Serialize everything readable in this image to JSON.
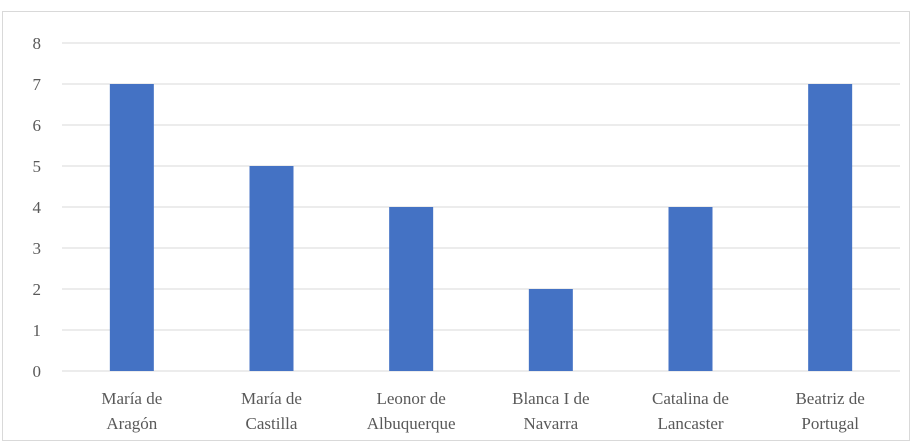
{
  "chart_data": {
    "type": "bar",
    "title": "",
    "xlabel": "",
    "ylabel": "",
    "categories": [
      [
        "María de",
        "Aragón"
      ],
      [
        "María de",
        "Castilla"
      ],
      [
        "Leonor de",
        "Albuquerque"
      ],
      [
        "Blanca I de",
        "Navarra"
      ],
      [
        "Catalina de",
        "Lancaster"
      ],
      [
        "Beatriz de",
        "Portugal"
      ]
    ],
    "values": [
      7,
      5,
      4,
      2,
      4,
      7
    ],
    "ylim": [
      0,
      8
    ],
    "yticks": [
      0,
      1,
      2,
      3,
      4,
      5,
      6,
      7,
      8
    ],
    "grid": true,
    "legend": "none",
    "colors": {
      "bar": "#4472c4",
      "grid": "#d9d9d9",
      "text": "#595959"
    }
  }
}
